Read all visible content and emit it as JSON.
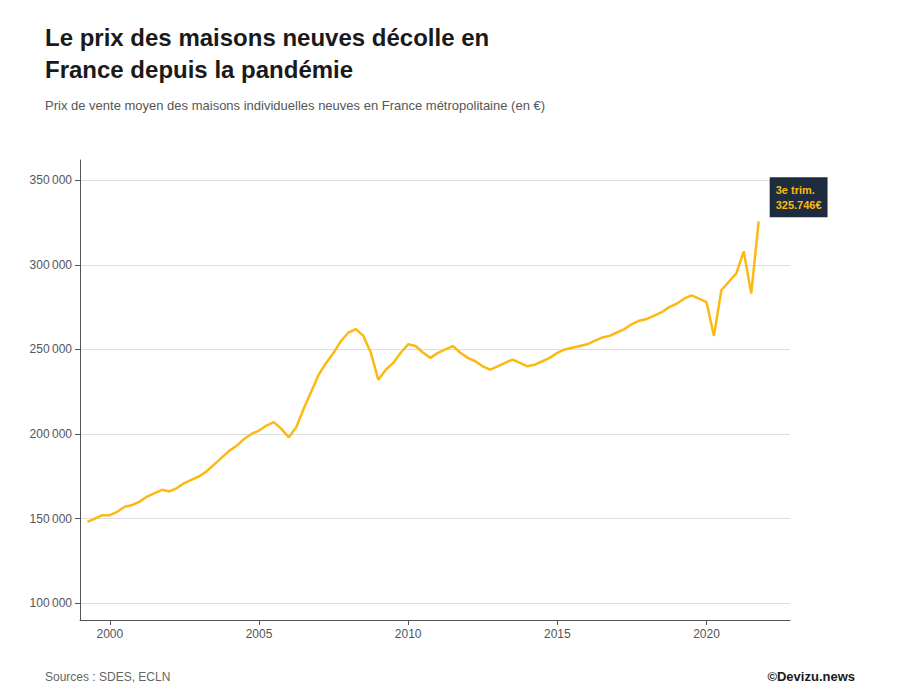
{
  "chart_data": {
    "type": "line",
    "title": "Le prix des maisons neuves décolle en\nFrance depuis la pandémie",
    "subtitle": "Prix de vente moyen des maisons individuelles neuves en France métropolitaine (en €)",
    "source": "Sources : SDES, ECLN",
    "copyright": "©Devizu.news",
    "color": "#FDB913",
    "grid": true,
    "xlim": [
      1999.0,
      2022.8
    ],
    "xticks": [
      2000,
      2005,
      2010,
      2015,
      2020
    ],
    "ylim": [
      90000,
      362000
    ],
    "yticks": [
      {
        "value": 100000,
        "label": "100 000"
      },
      {
        "value": 150000,
        "label": "150 000"
      },
      {
        "value": 200000,
        "label": "200 000"
      },
      {
        "value": 250000,
        "label": "250 000"
      },
      {
        "value": 300000,
        "label": "300 000"
      },
      {
        "value": 350000,
        "label": "350 000"
      }
    ],
    "annotations": [
      {
        "text": "3e trim.\n325.746€",
        "x": 2021.75,
        "y": 325746,
        "color": "#FDB913",
        "background": "#1e2d3d"
      }
    ],
    "x": [
      1999.25,
      1999.5,
      1999.75,
      2000.0,
      2000.25,
      2000.5,
      2000.75,
      2001.0,
      2001.25,
      2001.5,
      2001.75,
      2002.0,
      2002.25,
      2002.5,
      2002.75,
      2003.0,
      2003.25,
      2003.5,
      2003.75,
      2004.0,
      2004.25,
      2004.5,
      2004.75,
      2005.0,
      2005.25,
      2005.5,
      2005.75,
      2006.0,
      2006.25,
      2006.5,
      2006.75,
      2007.0,
      2007.25,
      2007.5,
      2007.75,
      2008.0,
      2008.25,
      2008.5,
      2008.75,
      2009.0,
      2009.25,
      2009.5,
      2009.75,
      2010.0,
      2010.25,
      2010.5,
      2010.75,
      2011.0,
      2011.25,
      2011.5,
      2011.75,
      2012.0,
      2012.25,
      2012.5,
      2012.75,
      2013.0,
      2013.25,
      2013.5,
      2013.75,
      2014.0,
      2014.25,
      2014.5,
      2014.75,
      2015.0,
      2015.25,
      2015.5,
      2015.75,
      2016.0,
      2016.25,
      2016.5,
      2016.75,
      2017.0,
      2017.25,
      2017.5,
      2017.75,
      2018.0,
      2018.25,
      2018.5,
      2018.75,
      2019.0,
      2019.25,
      2019.5,
      2019.75,
      2020.0,
      2020.25,
      2020.5,
      2020.75,
      2021.0,
      2021.25,
      2021.5,
      2021.75
    ],
    "values": [
      148000,
      150000,
      152000,
      152000,
      154000,
      157000,
      158000,
      160000,
      163000,
      165000,
      167000,
      166000,
      168000,
      171000,
      173000,
      175000,
      178000,
      182000,
      186000,
      190000,
      193000,
      197000,
      200000,
      202000,
      205000,
      207000,
      203000,
      198000,
      204000,
      215000,
      225000,
      235000,
      242000,
      248000,
      255000,
      260000,
      262000,
      258000,
      248000,
      232000,
      238000,
      242000,
      248000,
      253000,
      252000,
      248000,
      245000,
      248000,
      250000,
      252000,
      248000,
      245000,
      243000,
      240000,
      238000,
      240000,
      242000,
      244000,
      242000,
      240000,
      241000,
      243000,
      245000,
      248000,
      250000,
      251000,
      252000,
      253000,
      255000,
      257000,
      258000,
      260000,
      262000,
      265000,
      267000,
      268000,
      270000,
      272000,
      275000,
      277000,
      280000,
      282000,
      280000,
      278000,
      258000,
      285000,
      290000,
      295000,
      308000,
      283000,
      325746
    ]
  }
}
